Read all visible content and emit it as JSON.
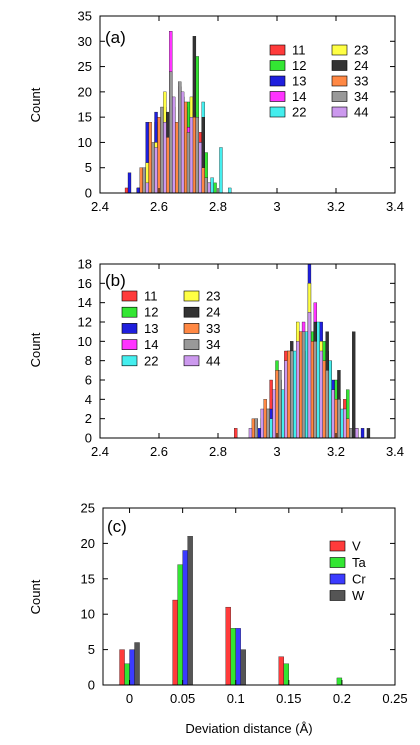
{
  "chart_data": [
    {
      "type": "bar",
      "tag": "(a)",
      "xlabel": "",
      "ylabel": "Count",
      "xlim": [
        2.4,
        3.4
      ],
      "ylim": [
        0,
        35
      ],
      "xticks": [
        "2.4",
        "2.6",
        "2.8",
        "3",
        "3.2",
        "3.4"
      ],
      "yticks": [
        "0",
        "5",
        "10",
        "15",
        "20",
        "25",
        "30",
        "35"
      ],
      "legend_position": "right",
      "series": [
        {
          "name": "11",
          "color": "#ff3b3b",
          "x": [
            2.49,
            2.53,
            2.56,
            2.59,
            2.62,
            2.65,
            2.68,
            2.71,
            2.74,
            2.77
          ],
          "values": [
            1,
            1,
            2,
            14,
            16,
            17,
            19,
            13,
            12,
            1
          ]
        },
        {
          "name": "12",
          "color": "#33e633",
          "x": [
            2.55,
            2.58,
            2.61,
            2.64,
            2.67,
            2.7,
            2.73,
            2.76,
            2.79
          ],
          "values": [
            1,
            2,
            5,
            12,
            11,
            18,
            27,
            8,
            2
          ]
        },
        {
          "name": "13",
          "color": "#1f1fdd",
          "x": [
            2.5,
            2.53,
            2.56,
            2.59,
            2.62,
            2.65,
            2.68,
            2.71,
            2.74
          ],
          "values": [
            4,
            1,
            14,
            16,
            17,
            10,
            19,
            13,
            5
          ]
        },
        {
          "name": "14",
          "color": "#ff33ff",
          "x": [
            2.55,
            2.58,
            2.61,
            2.64,
            2.67,
            2.7,
            2.73
          ],
          "values": [
            2,
            6,
            14,
            32,
            21,
            13,
            1
          ]
        },
        {
          "name": "22",
          "color": "#44eeee",
          "x": [
            2.63,
            2.66,
            2.69,
            2.72,
            2.75,
            2.78,
            2.81,
            2.84
          ],
          "values": [
            2,
            4,
            9,
            16,
            18,
            3,
            9,
            1
          ]
        },
        {
          "name": "23",
          "color": "#ffff44",
          "x": [
            2.56,
            2.59,
            2.62,
            2.65,
            2.68,
            2.71,
            2.74,
            2.77
          ],
          "values": [
            6,
            10,
            20,
            15,
            18,
            19,
            10,
            2
          ]
        },
        {
          "name": "24",
          "color": "#333333",
          "x": [
            2.57,
            2.6,
            2.63,
            2.66,
            2.69,
            2.72,
            2.75
          ],
          "values": [
            5,
            14,
            16,
            9,
            17,
            31,
            15
          ]
        },
        {
          "name": "33",
          "color": "#ff8844",
          "x": [
            2.54,
            2.57,
            2.6,
            2.63,
            2.66,
            2.69,
            2.72,
            2.75
          ],
          "values": [
            5,
            14,
            15,
            11,
            14,
            18,
            15,
            5
          ]
        },
        {
          "name": "34",
          "color": "#999999",
          "x": [
            2.55,
            2.58,
            2.61,
            2.64,
            2.67,
            2.7,
            2.73,
            2.76
          ],
          "values": [
            5,
            10,
            17,
            24,
            22,
            12,
            15,
            3
          ]
        },
        {
          "name": "44",
          "color": "#cc99ee",
          "x": [
            2.56,
            2.59,
            2.62,
            2.65,
            2.68,
            2.71,
            2.74,
            2.77
          ],
          "values": [
            2,
            9,
            14,
            19,
            20,
            15,
            10,
            2
          ]
        }
      ]
    },
    {
      "type": "bar",
      "tag": "(b)",
      "xlabel": "",
      "ylabel": "Count",
      "xlim": [
        2.4,
        3.4
      ],
      "ylim": [
        0,
        18
      ],
      "xticks": [
        "2.4",
        "2.6",
        "2.8",
        "3",
        "3.2",
        "3.4"
      ],
      "yticks": [
        "0",
        "2",
        "4",
        "6",
        "8",
        "10",
        "12",
        "14",
        "16",
        "18"
      ],
      "legend_position": "top-left",
      "series": [
        {
          "name": "11",
          "color": "#ff3b3b",
          "x": [
            2.86,
            2.93,
            2.98,
            3.03,
            3.08,
            3.13,
            3.18,
            3.23,
            3.27
          ],
          "values": [
            1,
            2,
            6,
            9,
            11,
            12,
            8,
            4,
            1
          ]
        },
        {
          "name": "12",
          "color": "#33e633",
          "x": [
            2.96,
            3.0,
            3.04,
            3.08,
            3.12,
            3.16,
            3.2,
            3.24
          ],
          "values": [
            2,
            8,
            9,
            10,
            11,
            10,
            6,
            5
          ]
        },
        {
          "name": "13",
          "color": "#1f1fdd",
          "x": [
            2.94,
            2.98,
            3.03,
            3.07,
            3.11,
            3.15,
            3.19,
            3.23,
            3.29
          ],
          "values": [
            1,
            3,
            7,
            10,
            18,
            12,
            6,
            2,
            1
          ]
        },
        {
          "name": "14",
          "color": "#ff33ff",
          "x": [
            2.97,
            3.01,
            3.05,
            3.09,
            3.13,
            3.17,
            3.21
          ],
          "values": [
            3,
            6,
            8,
            12,
            14,
            9,
            4
          ]
        },
        {
          "name": "22",
          "color": "#44eeee",
          "x": [
            2.98,
            3.02,
            3.06,
            3.1,
            3.14,
            3.18,
            3.22
          ],
          "values": [
            2,
            5,
            9,
            11,
            12,
            8,
            3
          ]
        },
        {
          "name": "23",
          "color": "#ffff44",
          "x": [
            2.95,
            2.99,
            3.03,
            3.07,
            3.11,
            3.15,
            3.19,
            3.23
          ],
          "values": [
            2,
            4,
            8,
            12,
            16,
            10,
            5,
            2
          ]
        },
        {
          "name": "24",
          "color": "#333333",
          "x": [
            2.97,
            3.01,
            3.05,
            3.09,
            3.13,
            3.17,
            3.21,
            3.26,
            3.31
          ],
          "values": [
            2,
            6,
            10,
            9,
            12,
            11,
            7,
            11,
            1
          ]
        },
        {
          "name": "33",
          "color": "#ff8844",
          "x": [
            2.92,
            2.96,
            3.0,
            3.04,
            3.08,
            3.12,
            3.16,
            3.2,
            3.24
          ],
          "values": [
            2,
            4,
            7,
            9,
            11,
            10,
            8,
            4,
            2
          ]
        },
        {
          "name": "34",
          "color": "#999999",
          "x": [
            2.93,
            2.97,
            3.01,
            3.05,
            3.09,
            3.13,
            3.17,
            3.21,
            3.25
          ],
          "values": [
            2,
            3,
            7,
            9,
            11,
            10,
            7,
            4,
            1
          ]
        },
        {
          "name": "44",
          "color": "#cc99ee",
          "x": [
            2.91,
            2.95,
            2.99,
            3.03,
            3.07,
            3.11,
            3.15,
            3.19,
            3.23,
            3.27
          ],
          "values": [
            1,
            3,
            5,
            8,
            10,
            13,
            9,
            5,
            3,
            1
          ]
        }
      ]
    },
    {
      "type": "bar",
      "tag": "(c)",
      "xlabel": "Deviation distance (Å)",
      "ylabel": "Count",
      "xlim": [
        -0.025,
        0.25
      ],
      "ylim": [
        0,
        25
      ],
      "xticks": [
        "0",
        "0.05",
        "0.1",
        "0.15",
        "0.2",
        "0.25"
      ],
      "yticks": [
        "0",
        "5",
        "10",
        "15",
        "20",
        "25"
      ],
      "legend_position": "right",
      "categories": [
        "0",
        "0.05",
        "0.1",
        "0.15",
        "0.2"
      ],
      "series": [
        {
          "name": "V",
          "color": "#ff3b3b",
          "values": [
            5,
            12,
            11,
            4,
            0
          ]
        },
        {
          "name": "Ta",
          "color": "#33e633",
          "values": [
            3,
            17,
            8,
            3,
            1
          ]
        },
        {
          "name": "Cr",
          "color": "#3b3bff",
          "values": [
            5,
            19,
            8,
            0,
            0
          ]
        },
        {
          "name": "W",
          "color": "#555555",
          "values": [
            6,
            21,
            5,
            0,
            0
          ]
        }
      ]
    }
  ]
}
